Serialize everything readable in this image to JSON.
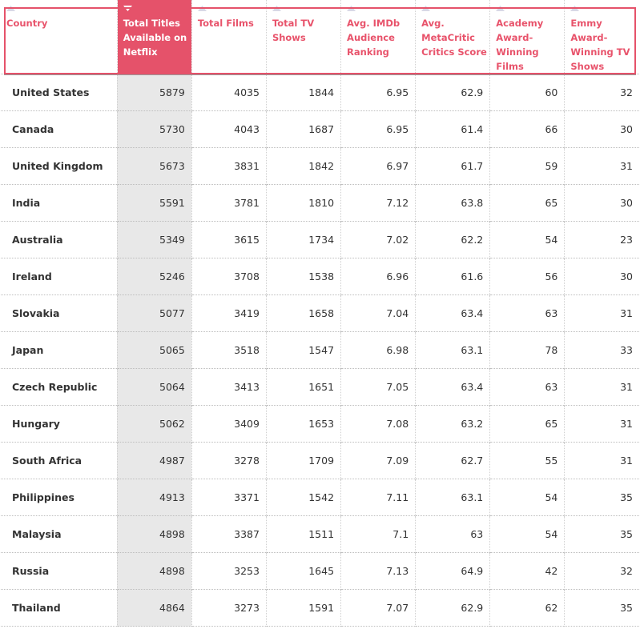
{
  "table": {
    "headers": [
      {
        "label": "Country",
        "sortable": true,
        "active": false
      },
      {
        "label": "Total Titles Available on Netflix",
        "sortable": true,
        "active": true
      },
      {
        "label": "Total Films",
        "sortable": true,
        "active": false
      },
      {
        "label": "Total TV Shows",
        "sortable": true,
        "active": false
      },
      {
        "label": "Avg. IMDb Audience Ranking",
        "sortable": true,
        "active": false
      },
      {
        "label": "Avg. MetaCritic Critics Score",
        "sortable": true,
        "active": false
      },
      {
        "label": "Academy Award-Winning Films",
        "sortable": true,
        "active": false
      },
      {
        "label": "Emmy Award-Winning TV Shows",
        "sortable": true,
        "active": false
      }
    ],
    "sort": {
      "column": "Total Titles Available on Netflix",
      "direction": "descending"
    },
    "colors": {
      "accent": "#e5526a",
      "active_column_bg": "#e8e8e8",
      "inactive_arrow": "#d8d8e6"
    },
    "rows": [
      [
        "United States",
        "5879",
        "4035",
        "1844",
        "6.95",
        "62.9",
        "60",
        "32"
      ],
      [
        "Canada",
        "5730",
        "4043",
        "1687",
        "6.95",
        "61.4",
        "66",
        "30"
      ],
      [
        "United Kingdom",
        "5673",
        "3831",
        "1842",
        "6.97",
        "61.7",
        "59",
        "31"
      ],
      [
        "India",
        "5591",
        "3781",
        "1810",
        "7.12",
        "63.8",
        "65",
        "30"
      ],
      [
        "Australia",
        "5349",
        "3615",
        "1734",
        "7.02",
        "62.2",
        "54",
        "23"
      ],
      [
        "Ireland",
        "5246",
        "3708",
        "1538",
        "6.96",
        "61.6",
        "56",
        "30"
      ],
      [
        "Slovakia",
        "5077",
        "3419",
        "1658",
        "7.04",
        "63.4",
        "63",
        "31"
      ],
      [
        "Japan",
        "5065",
        "3518",
        "1547",
        "6.98",
        "63.1",
        "78",
        "33"
      ],
      [
        "Czech Republic",
        "5064",
        "3413",
        "1651",
        "7.05",
        "63.4",
        "63",
        "31"
      ],
      [
        "Hungary",
        "5062",
        "3409",
        "1653",
        "7.08",
        "63.2",
        "65",
        "31"
      ],
      [
        "South Africa",
        "4987",
        "3278",
        "1709",
        "7.09",
        "62.7",
        "55",
        "31"
      ],
      [
        "Philippines",
        "4913",
        "3371",
        "1542",
        "7.11",
        "63.1",
        "54",
        "35"
      ],
      [
        "Malaysia",
        "4898",
        "3387",
        "1511",
        "7.1",
        "63",
        "54",
        "35"
      ],
      [
        "Russia",
        "4898",
        "3253",
        "1645",
        "7.13",
        "64.9",
        "42",
        "32"
      ],
      [
        "Thailand",
        "4864",
        "3273",
        "1591",
        "7.07",
        "62.9",
        "62",
        "35"
      ]
    ]
  }
}
